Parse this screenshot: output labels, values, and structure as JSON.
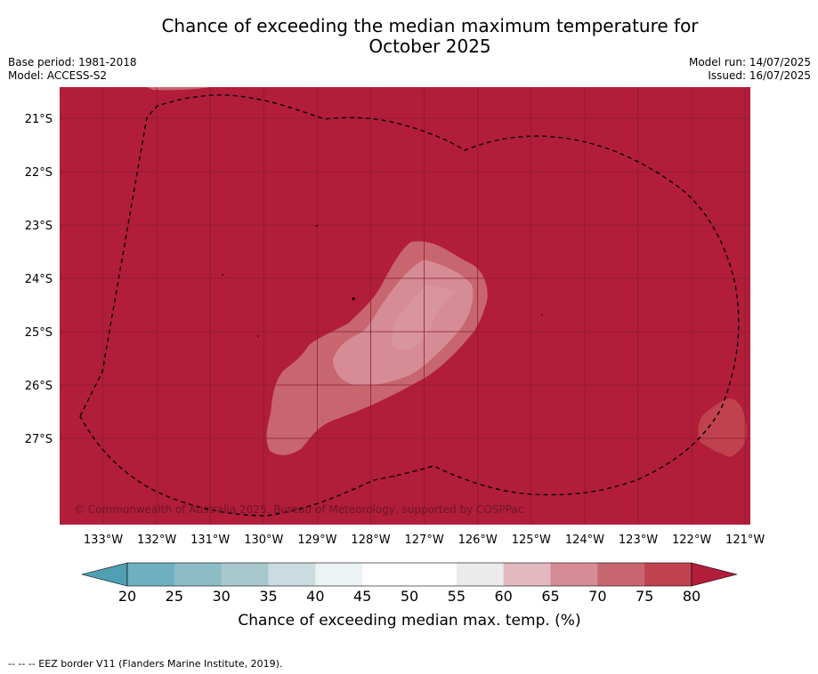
{
  "header": {
    "title_line1": "Chance of exceeding the median maximum temperature for",
    "title_line2": "October 2025",
    "base_period": "Base period: 1981-2018",
    "model": "Model: ACCESS-S2",
    "model_run": "Model run: 14/07/2025",
    "issued": "Issued: 16/07/2025"
  },
  "map": {
    "copyright": "© Commonwealth of Australia 2025, Bureau of Meteorology, supported by COSPPac",
    "lat_labels": [
      "21°S",
      "22°S",
      "23°S",
      "24°S",
      "25°S",
      "26°S",
      "27°S"
    ],
    "lon_labels": [
      "133°W",
      "132°W",
      "131°W",
      "130°W",
      "129°W",
      "128°W",
      "127°W",
      "126°W",
      "125°W",
      "124°W",
      "123°W",
      "122°W",
      "121°W"
    ],
    "colors": {
      "background_80plus": "#b21d3a",
      "band_75_80": "#c0424f",
      "band_70_75": "#c86670",
      "band_65_70": "#d58c95",
      "eez_line": "#000000"
    }
  },
  "legend": {
    "title": "Chance of exceeding median max. temp. (%)",
    "ticks": [
      "20",
      "25",
      "30",
      "35",
      "40",
      "45",
      "50",
      "55",
      "60",
      "65",
      "70",
      "75",
      "80"
    ],
    "colors": [
      "#5fa8b8",
      "#6fb0c0",
      "#8dbcc7",
      "#a9c8cd",
      "#cbdce0",
      "#ecf3f5",
      "#ffffff",
      "#ffffff",
      "#ebebeb",
      "#e2b9bf",
      "#d58c95",
      "#c86670",
      "#c0424f",
      "#b21d3a"
    ]
  },
  "footer": {
    "eez_note": "-- -- -- EEZ border V11 (Flanders Marine Institute, 2019)."
  }
}
